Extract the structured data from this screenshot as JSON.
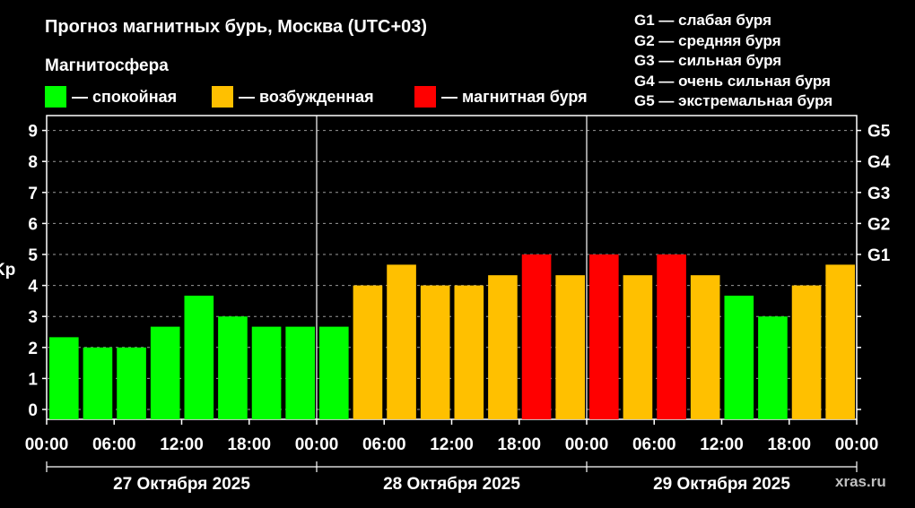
{
  "title": "Прогноз магнитных бурь, Москва (UTC+03)",
  "legend": {
    "title": "Магнитосфера",
    "items": [
      {
        "label": "— спокойная",
        "color": "#00ff00"
      },
      {
        "label": "— возбужденная",
        "color": "#ffc000"
      },
      {
        "label": "— магнитная буря",
        "color": "#ff0000"
      }
    ]
  },
  "g_legend": [
    "G1 — слабая буря",
    "G2 — средняя буря",
    "G3 — сильная буря",
    "G4 — очень сильная буря",
    "G5 — экстремальная буря"
  ],
  "watermark": "xras.ru",
  "chart_data": {
    "type": "bar",
    "ylabel": "Kp",
    "ylim": [
      0,
      9.5
    ],
    "y_ticks": [
      "0",
      "1",
      "2",
      "3",
      "4",
      "5",
      "6",
      "7",
      "8",
      "9"
    ],
    "right_ticks": [
      {
        "value": 5,
        "label": "G1"
      },
      {
        "value": 6,
        "label": "G2"
      },
      {
        "value": 7,
        "label": "G3"
      },
      {
        "value": 8,
        "label": "G4"
      },
      {
        "value": 9,
        "label": "G5"
      }
    ],
    "x_tick_labels": [
      "00:00",
      "06:00",
      "12:00",
      "18:00",
      "00:00",
      "06:00",
      "12:00",
      "18:00",
      "00:00",
      "06:00",
      "12:00",
      "18:00",
      "00:00"
    ],
    "days": [
      "27 Октября 2025",
      "28 Октября 2025",
      "29 Октября 2025"
    ],
    "interval_hours": 3,
    "values": [
      2.33,
      2.0,
      2.0,
      2.67,
      3.67,
      3.0,
      2.67,
      2.67,
      2.67,
      4.0,
      4.67,
      4.0,
      4.0,
      4.33,
      5.0,
      4.33,
      5.0,
      4.33,
      5.0,
      4.33,
      3.67,
      3.0,
      4.0,
      4.67
    ],
    "colors": {
      "quiet": "#00ff00",
      "active": "#ffc000",
      "storm": "#ff0000"
    },
    "thresholds": {
      "active": 4,
      "storm": 5
    },
    "grid": "dashed horizontal"
  }
}
